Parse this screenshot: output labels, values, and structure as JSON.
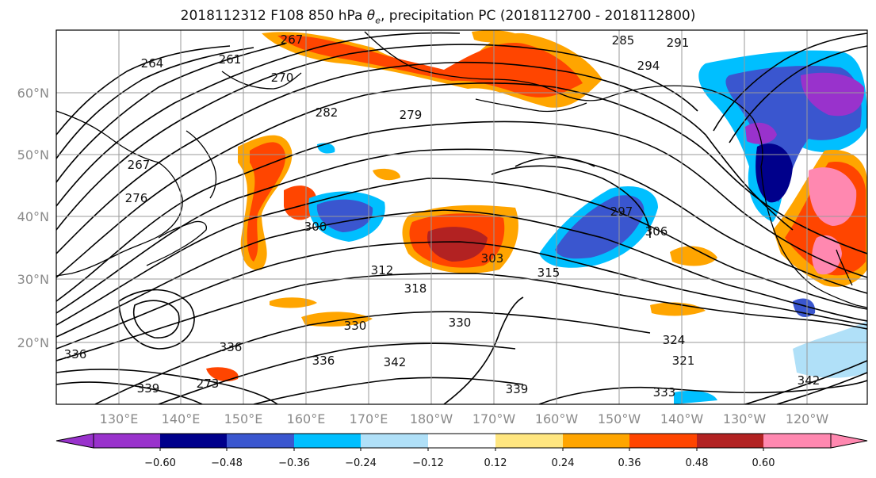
{
  "title_parts": {
    "prefix": "2018112312 F108 850 hPa ",
    "symbol": "θ",
    "sub": "e",
    "suffix": ", precipitation PC (2018112700 - 2018112800)"
  },
  "lat_ticks": [
    "60°N",
    "50°N",
    "40°N",
    "30°N",
    "20°N"
  ],
  "lon_ticks": [
    "130°E",
    "140°E",
    "150°E",
    "160°E",
    "170°E",
    "180°W",
    "170°W",
    "160°W",
    "150°W",
    "140°W",
    "130°W",
    "120°W"
  ],
  "colorbar": {
    "tick_labels": [
      "−0.60",
      "−0.48",
      "−0.36",
      "−0.24",
      "−0.12",
      "0.12",
      "0.24",
      "0.36",
      "0.48",
      "0.60"
    ],
    "colors": [
      "#9932cc",
      "#00008b",
      "#3a56cf",
      "#00bfff",
      "#b0e0f8",
      "#ffffff",
      "#ffe680",
      "#ffa500",
      "#ff4500",
      "#b22222",
      "#ff88b0"
    ]
  },
  "contour_labels": [
    "264",
    "261",
    "267",
    "276",
    "282",
    "279",
    "285",
    "291",
    "294",
    "297",
    "300",
    "306",
    "303",
    "312",
    "318",
    "315",
    "324",
    "321",
    "330",
    "336",
    "339",
    "342",
    "333",
    "336",
    "339",
    "342",
    "267",
    "270",
    "273",
    "330",
    "336"
  ],
  "colors": {
    "grid": "#9a9a9a",
    "contour": "#000000"
  }
}
